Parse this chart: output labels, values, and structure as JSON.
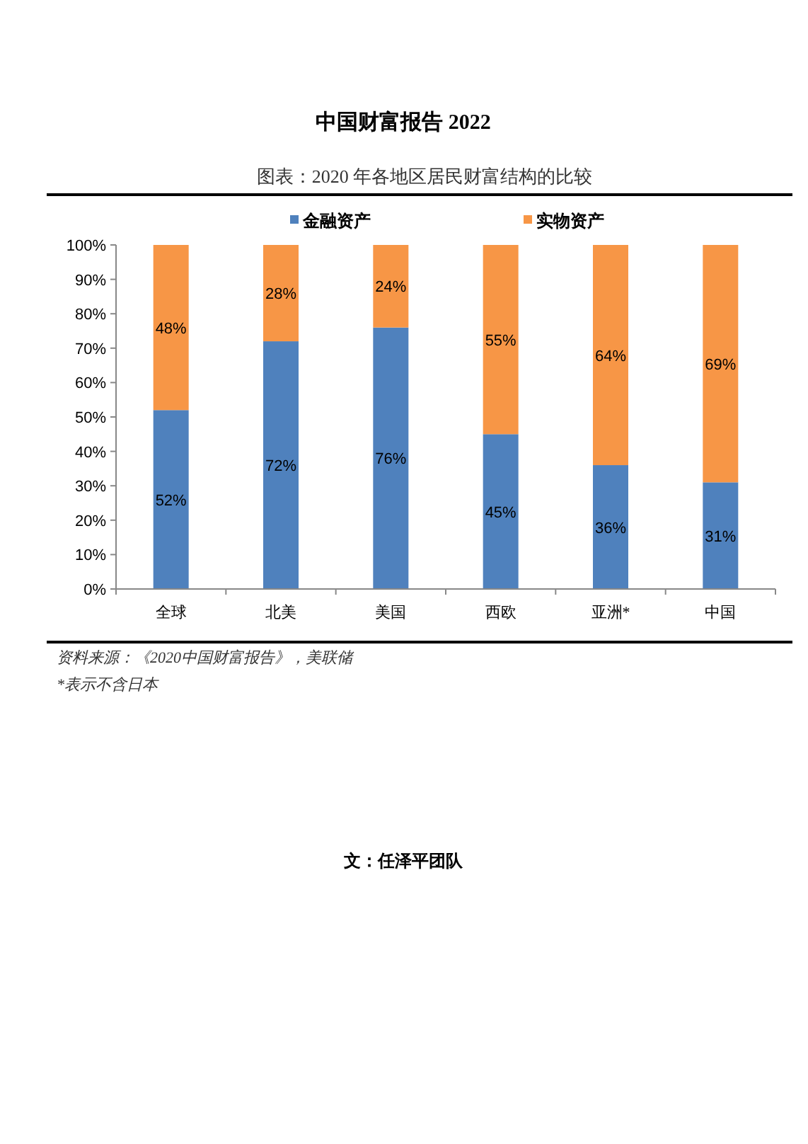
{
  "chart_data": {
    "type": "bar",
    "stacked": true,
    "title": "中国财富报告 2022",
    "subtitle": "图表：2020 年各地区居民财富结构的比较",
    "categories": [
      "全球",
      "北美",
      "美国",
      "西欧",
      "亚洲*",
      "中国"
    ],
    "series": [
      {
        "name": "金融资产",
        "color": "#4f81bd",
        "values": [
          52,
          72,
          76,
          45,
          36,
          31
        ],
        "value_labels": [
          "52%",
          "72%",
          "76%",
          "45%",
          "36%",
          "31%"
        ]
      },
      {
        "name": "实物资产",
        "color": "#f79646",
        "values": [
          48,
          28,
          24,
          55,
          64,
          69
        ],
        "value_labels": [
          "48%",
          "28%",
          "24%",
          "55%",
          "64%",
          "69%"
        ]
      }
    ],
    "ylim": [
      0,
      100
    ],
    "yticks": [
      {
        "value": 0,
        "label": "0%"
      },
      {
        "value": 10,
        "label": "10%"
      },
      {
        "value": 20,
        "label": "20%"
      },
      {
        "value": 30,
        "label": "30%"
      },
      {
        "value": 40,
        "label": "40%"
      },
      {
        "value": 50,
        "label": "50%"
      },
      {
        "value": 60,
        "label": "60%"
      },
      {
        "value": 70,
        "label": "70%"
      },
      {
        "value": 80,
        "label": "80%"
      },
      {
        "value": 90,
        "label": "90%"
      },
      {
        "value": 100,
        "label": "100%"
      }
    ],
    "legend": "top",
    "grid": false,
    "annotations": [
      "资料来源：《2020中国财富报告》，美联储",
      "*表示不含日本",
      "文：任泽平团队"
    ]
  }
}
